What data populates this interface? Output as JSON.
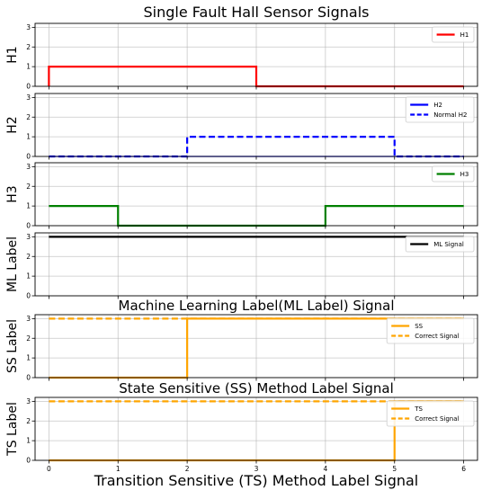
{
  "figure": {
    "top_title": "Single Fault Hall Sensor Signals",
    "x_axis_label": "Transition Sensitive (TS) Method Label Signal",
    "x_ticks": [
      "0",
      "1",
      "2",
      "3",
      "4",
      "5",
      "6"
    ]
  },
  "chart_data": [
    {
      "type": "line",
      "ylabel": "H1",
      "title": "",
      "xlim": [
        -0.2,
        6.2
      ],
      "ylim": [
        0,
        3.2
      ],
      "y_ticks": [
        "0",
        "1",
        "2",
        "3"
      ],
      "legend_position": "top-right",
      "grid": true,
      "series": [
        {
          "name": "H1",
          "color": "#ff0000",
          "dash": false,
          "x": [
            0,
            0,
            3,
            3,
            6
          ],
          "y": [
            0,
            1,
            1,
            0,
            0
          ]
        }
      ]
    },
    {
      "type": "line",
      "ylabel": "H2",
      "title": "",
      "xlim": [
        -0.2,
        6.2
      ],
      "ylim": [
        0,
        3.2
      ],
      "y_ticks": [
        "0",
        "1",
        "2",
        "3"
      ],
      "legend_position": "top-right",
      "grid": true,
      "series": [
        {
          "name": "H2",
          "color": "#0000ff",
          "dash": false,
          "thin": true,
          "x": [
            0,
            6
          ],
          "y": [
            0,
            0
          ]
        },
        {
          "name": "Normal H2",
          "color": "#0000ff",
          "dash": true,
          "x": [
            0,
            2,
            2,
            5,
            5,
            6
          ],
          "y": [
            0,
            0,
            1,
            1,
            0,
            0
          ]
        }
      ]
    },
    {
      "type": "line",
      "ylabel": "H3",
      "title": "",
      "xlim": [
        -0.2,
        6.2
      ],
      "ylim": [
        0,
        3.2
      ],
      "y_ticks": [
        "0",
        "1",
        "2",
        "3"
      ],
      "legend_position": "top-right",
      "grid": true,
      "series": [
        {
          "name": "H3",
          "color": "#008000",
          "dash": false,
          "x": [
            0,
            1,
            1,
            4,
            4,
            6
          ],
          "y": [
            1,
            1,
            0,
            0,
            1,
            1
          ]
        }
      ]
    },
    {
      "type": "line",
      "ylabel": "ML Label",
      "title": "Machine Learning Label(ML Label) Signal",
      "xlim": [
        -0.2,
        6.2
      ],
      "ylim": [
        0,
        3.2
      ],
      "y_ticks": [
        "0",
        "1",
        "2",
        "3"
      ],
      "legend_position": "top-right",
      "grid": true,
      "series": [
        {
          "name": "ML Signal",
          "color": "#000000",
          "dash": false,
          "x": [
            0,
            6
          ],
          "y": [
            3,
            3
          ]
        }
      ]
    },
    {
      "type": "line",
      "ylabel": "SS Label",
      "title": "State Sensitive (SS) Method Label Signal",
      "xlim": [
        -0.2,
        6.2
      ],
      "ylim": [
        0,
        3.2
      ],
      "y_ticks": [
        "0",
        "1",
        "2",
        "3"
      ],
      "legend_position": "top-right",
      "grid": true,
      "series": [
        {
          "name": "SS",
          "color": "#ffa500",
          "dash": false,
          "x": [
            0,
            2,
            2,
            6
          ],
          "y": [
            0,
            0,
            3,
            3
          ]
        },
        {
          "name": "Correct Signal",
          "color": "#ffa500",
          "dash": true,
          "x": [
            0,
            6
          ],
          "y": [
            3,
            3
          ]
        }
      ]
    },
    {
      "type": "line",
      "ylabel": "TS Label",
      "title": "",
      "xlim": [
        -0.2,
        6.2
      ],
      "ylim": [
        0,
        3.2
      ],
      "y_ticks": [
        "0",
        "1",
        "2",
        "3"
      ],
      "legend_position": "top-right",
      "grid": true,
      "series": [
        {
          "name": "TS",
          "color": "#ffa500",
          "dash": false,
          "x": [
            0,
            5,
            5,
            6
          ],
          "y": [
            0,
            0,
            3,
            3
          ]
        },
        {
          "name": "Correct Signal",
          "color": "#ffa500",
          "dash": true,
          "x": [
            0,
            6
          ],
          "y": [
            3,
            3
          ]
        }
      ]
    }
  ]
}
